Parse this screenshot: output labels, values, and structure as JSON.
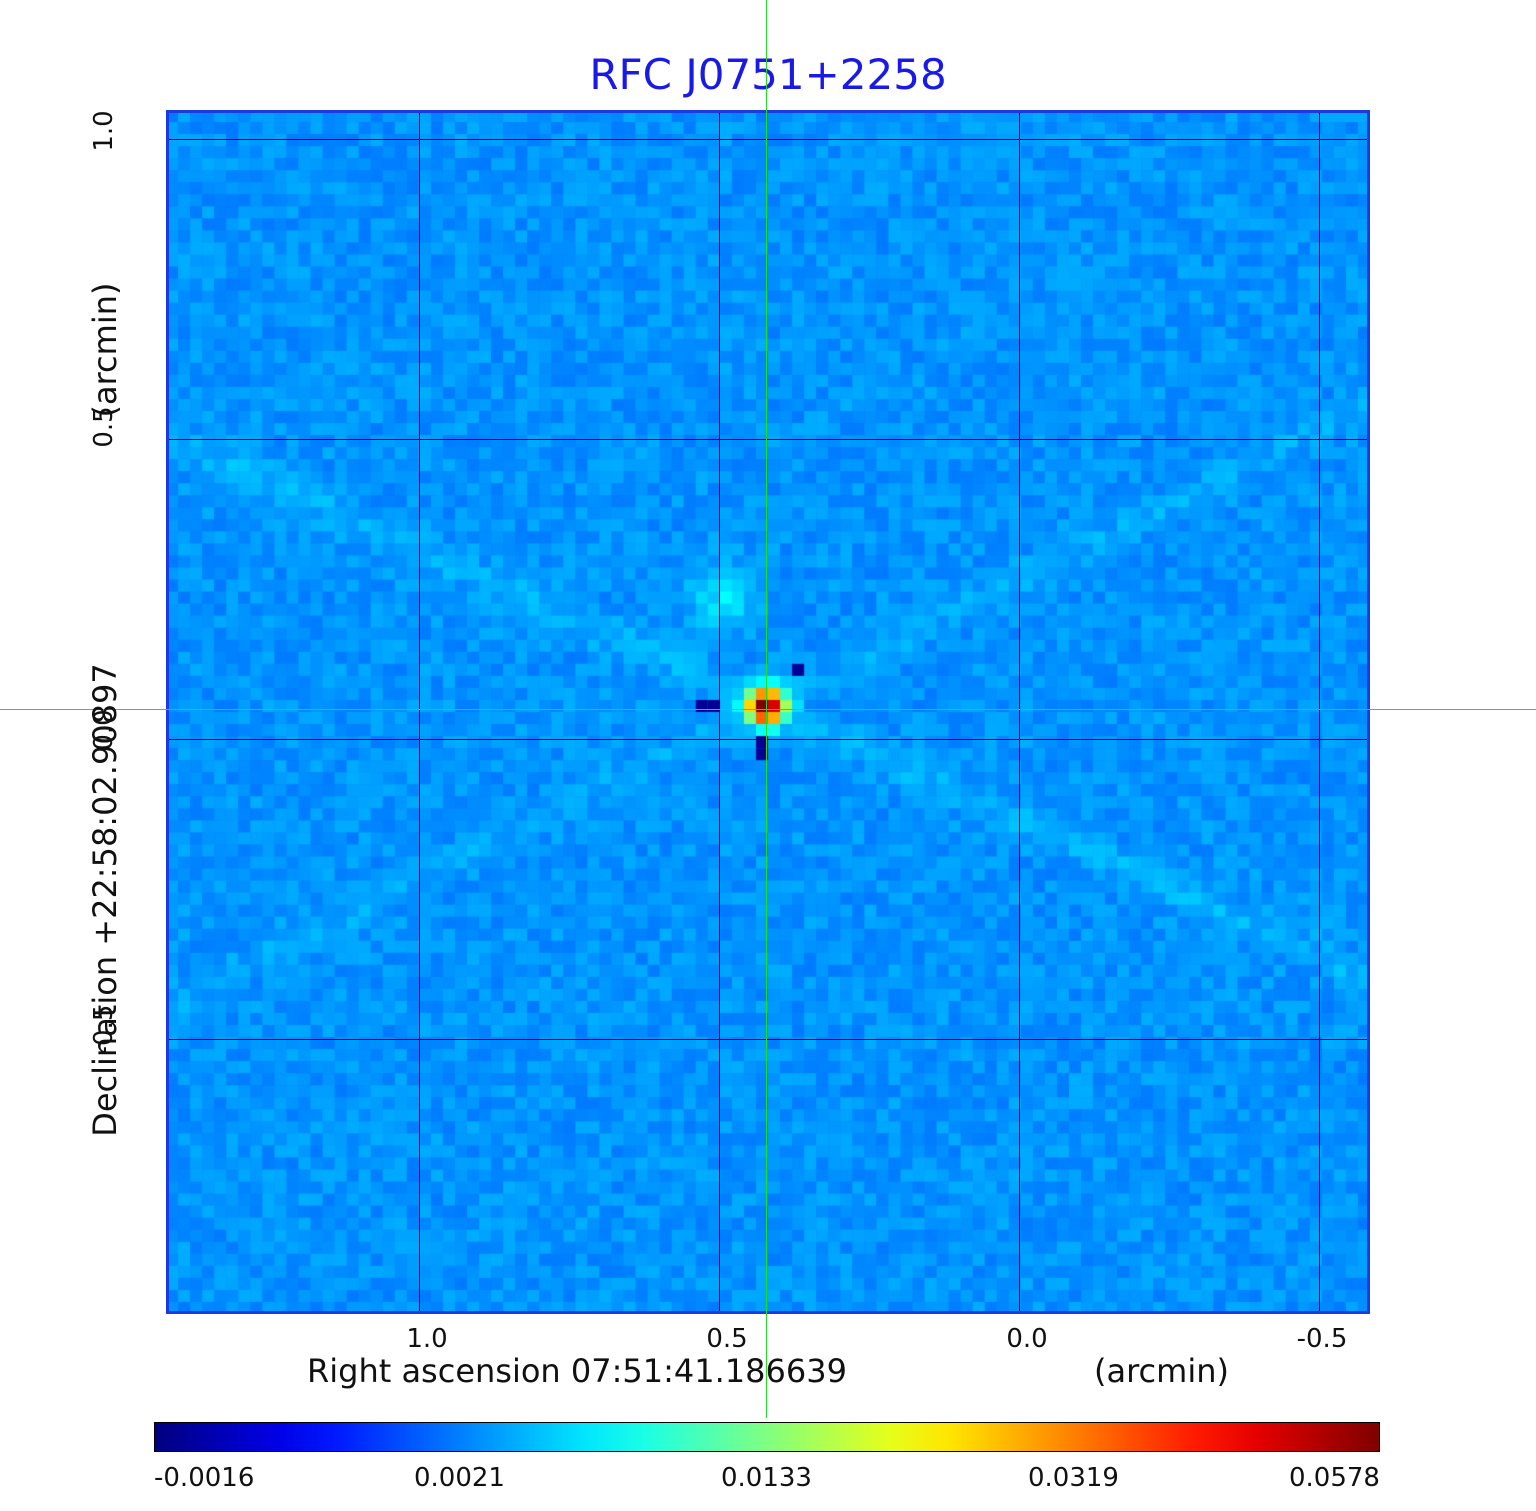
{
  "title": "RFC J0751+2258",
  "axes": {
    "x_label": "Right ascension  07:51:41.186639",
    "x_unit": "(arcmin)",
    "y_label": "Declination  +22:58:02.90897",
    "y_unit": "(arcmin)",
    "x_ticks": [
      "1.0",
      "0.5",
      "0.0",
      "-0.5"
    ],
    "y_ticks": [
      "1.0",
      "0.5",
      "0.0",
      "-0.5"
    ]
  },
  "colorbar": {
    "ticks": [
      "-0.0016",
      "0.0021",
      "0.0133",
      "0.0319",
      "0.0578"
    ],
    "colormap": "jet"
  },
  "colors": {
    "title": "#1a1ae6",
    "crosshair": "#22dd22",
    "background_map": "#1a5af0"
  }
}
